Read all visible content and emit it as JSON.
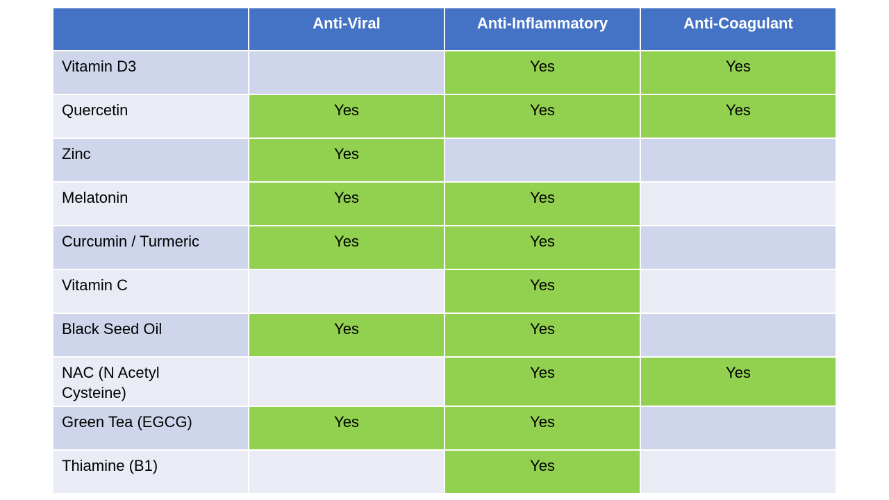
{
  "table": {
    "headers": [
      "",
      "Anti-Viral",
      "Anti-Inflammatory",
      "Anti-Coagulant"
    ],
    "rows": [
      {
        "supplement": "Vitamin D3",
        "values": [
          "",
          "Yes",
          "Yes"
        ]
      },
      {
        "supplement": "Quercetin",
        "values": [
          "Yes",
          "Yes",
          "Yes"
        ]
      },
      {
        "supplement": "Zinc",
        "values": [
          "Yes",
          "",
          ""
        ]
      },
      {
        "supplement": "Melatonin",
        "values": [
          "Yes",
          "Yes",
          ""
        ]
      },
      {
        "supplement": "Curcumin / Turmeric",
        "values": [
          "Yes",
          "Yes",
          ""
        ]
      },
      {
        "supplement": "Vitamin C",
        "values": [
          "",
          "Yes",
          ""
        ]
      },
      {
        "supplement": "Black Seed Oil",
        "values": [
          "Yes",
          "Yes",
          ""
        ]
      },
      {
        "supplement": "NAC (N Acetyl Cysteine)",
        "values": [
          "",
          "Yes",
          "Yes"
        ]
      },
      {
        "supplement": "Green Tea (EGCG)",
        "values": [
          "Yes",
          "Yes",
          ""
        ]
      },
      {
        "supplement": "Thiamine (B1)",
        "values": [
          "",
          "Yes",
          ""
        ]
      }
    ]
  },
  "colors": {
    "header_bg": "#4472C4",
    "header_text": "#FFFFFF",
    "yes_bg": "#92D050",
    "band_dark": "#CFD5EA",
    "band_light": "#E9EBF5",
    "body_text": "#000000",
    "border": "#FFFFFF"
  },
  "chart_data": {
    "type": "table",
    "title": "",
    "columns": [
      "",
      "Anti-Viral",
      "Anti-Inflammatory",
      "Anti-Coagulant"
    ],
    "rows": [
      [
        "Vitamin D3",
        "",
        "Yes",
        "Yes"
      ],
      [
        "Quercetin",
        "Yes",
        "Yes",
        "Yes"
      ],
      [
        "Zinc",
        "Yes",
        "",
        ""
      ],
      [
        "Melatonin",
        "Yes",
        "Yes",
        ""
      ],
      [
        "Curcumin / Turmeric",
        "Yes",
        "Yes",
        ""
      ],
      [
        "Vitamin C",
        "",
        "Yes",
        ""
      ],
      [
        "Black Seed Oil",
        "Yes",
        "Yes",
        ""
      ],
      [
        "NAC (N Acetyl Cysteine)",
        "",
        "Yes",
        "Yes"
      ],
      [
        "Green Tea (EGCG)",
        "Yes",
        "Yes",
        ""
      ],
      [
        "Thiamine (B1)",
        "",
        "Yes",
        ""
      ]
    ],
    "layout_hints": {
      "yes_cells_highlighted": "#92D050",
      "banded_rows": [
        "#CFD5EA",
        "#E9EBF5"
      ],
      "header_bg": "#4472C4"
    }
  }
}
